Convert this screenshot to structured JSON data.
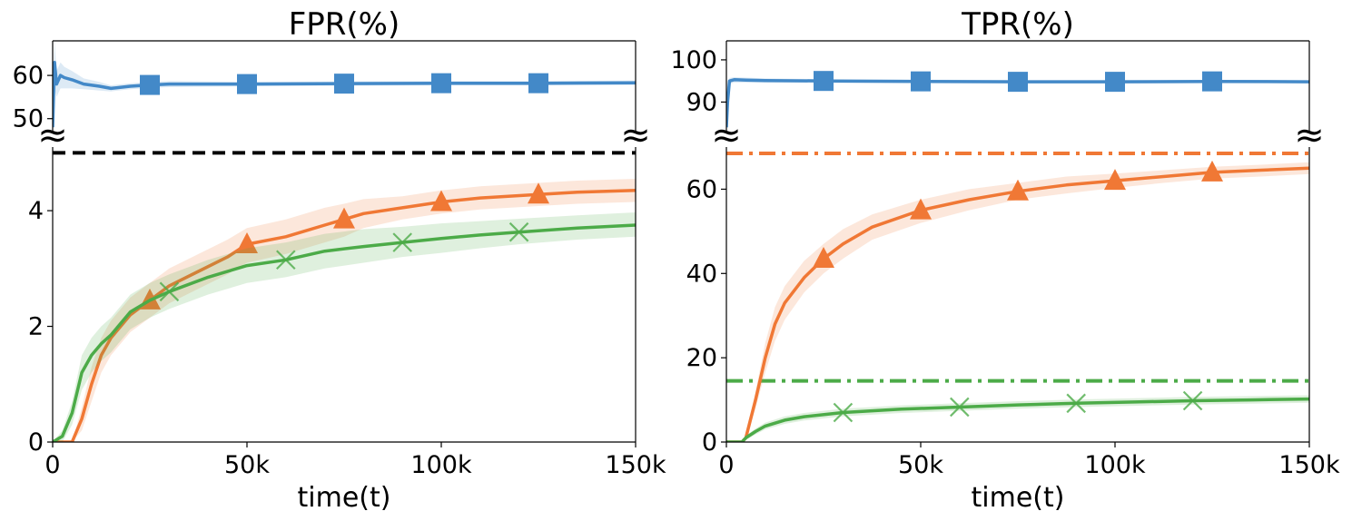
{
  "chart_data": [
    {
      "type": "line",
      "title": "FPR(%)",
      "xlabel": "time(t)",
      "ylabel": "",
      "x_ticks": [
        "0",
        "50k",
        "100k",
        "150k"
      ],
      "xlim": [
        0,
        150000
      ],
      "upper": {
        "ylim": [
          47,
          68
        ],
        "y_ticks": [
          50,
          60
        ],
        "series": [
          {
            "color": "#4389c8",
            "marker": "square",
            "markers_x": [
              25000,
              50000,
              75000,
              100000,
              125000
            ],
            "x": [
              0,
              500,
              1000,
              2000,
              3000,
              5000,
              8000,
              12000,
              15000,
              20000,
              25000,
              30000,
              40000,
              50000,
              75000,
              100000,
              125000,
              150000
            ],
            "y": [
              48,
              63,
              58,
              60,
              59.5,
              59,
              58,
              57.5,
              57,
              57.5,
              57.8,
              58,
              58,
              58,
              58.1,
              58.2,
              58.2,
              58.3
            ],
            "band_low": [
              45,
              57,
              55,
              57,
              57,
              57,
              56.8,
              56.5,
              56.3,
              56.8,
              57.1,
              57.3,
              57.4,
              57.5,
              57.6,
              57.7,
              57.7,
              57.8
            ],
            "band_high": [
              51,
              68,
              61,
              63,
              62,
              61,
              59.3,
              58.5,
              57.7,
              58.2,
              58.5,
              58.7,
              58.6,
              58.5,
              58.6,
              58.7,
              58.7,
              58.8
            ]
          }
        ]
      },
      "lower": {
        "ylim": [
          0,
          5.1
        ],
        "y_ticks": [
          0,
          2,
          4
        ],
        "reference_lines": [
          {
            "y": 5.0,
            "color": "#000000",
            "style": "dashed"
          }
        ],
        "series": [
          {
            "color": "#f07835",
            "marker": "triangle",
            "markers_x": [
              25000,
              50000,
              75000,
              100000,
              125000
            ],
            "x": [
              0,
              5000,
              7500,
              10000,
              12500,
              15000,
              20000,
              25000,
              30000,
              37500,
              45000,
              50000,
              60000,
              70000,
              75000,
              80000,
              90000,
              100000,
              110000,
              125000,
              135000,
              150000
            ],
            "y": [
              0,
              0,
              0.4,
              1.0,
              1.5,
              1.8,
              2.2,
              2.45,
              2.7,
              2.95,
              3.2,
              3.42,
              3.55,
              3.75,
              3.85,
              3.95,
              4.05,
              4.15,
              4.22,
              4.28,
              4.32,
              4.35
            ],
            "band_low": [
              0,
              0,
              0.2,
              0.7,
              1.2,
              1.5,
              1.9,
              2.15,
              2.4,
              2.65,
              2.9,
              3.1,
              3.25,
              3.45,
              3.55,
              3.7,
              3.85,
              3.95,
              4.02,
              4.08,
              4.12,
              4.15
            ],
            "band_high": [
              0,
              0,
              0.6,
              1.3,
              1.8,
              2.1,
              2.5,
              2.75,
              3.0,
              3.25,
              3.5,
              3.7,
              3.85,
              4.05,
              4.12,
              4.2,
              4.25,
              4.35,
              4.42,
              4.48,
              4.52,
              4.55
            ]
          },
          {
            "color": "#4cab48",
            "marker": "x",
            "markers_x": [
              30000,
              60000,
              90000,
              120000
            ],
            "x": [
              0,
              2500,
              5000,
              7500,
              10000,
              12500,
              15000,
              20000,
              25000,
              30000,
              40000,
              50000,
              60000,
              70000,
              80000,
              90000,
              100000,
              110000,
              120000,
              135000,
              150000
            ],
            "y": [
              0,
              0.1,
              0.5,
              1.2,
              1.5,
              1.7,
              1.85,
              2.25,
              2.45,
              2.6,
              2.85,
              3.05,
              3.15,
              3.3,
              3.38,
              3.45,
              3.52,
              3.58,
              3.63,
              3.7,
              3.75
            ],
            "band_low": [
              0,
              0,
              0.3,
              0.9,
              1.2,
              1.4,
              1.55,
              1.95,
              2.15,
              2.3,
              2.55,
              2.75,
              2.85,
              3.0,
              3.1,
              3.2,
              3.27,
              3.35,
              3.42,
              3.5,
              3.55
            ],
            "band_high": [
              0,
              0.2,
              0.7,
              1.5,
              1.8,
              2.0,
              2.15,
              2.55,
              2.75,
              2.9,
              3.15,
              3.35,
              3.45,
              3.6,
              3.68,
              3.72,
              3.78,
              3.82,
              3.86,
              3.92,
              3.97
            ]
          }
        ]
      }
    },
    {
      "type": "line",
      "title": "TPR(%)",
      "xlabel": "time(t)",
      "ylabel": "",
      "x_ticks": [
        "0",
        "50k",
        "100k",
        "150k"
      ],
      "xlim": [
        0,
        150000
      ],
      "upper": {
        "ylim": [
          83,
          104.5
        ],
        "y_ticks": [
          90,
          100
        ],
        "series": [
          {
            "color": "#4389c8",
            "marker": "square",
            "markers_x": [
              25000,
              50000,
              75000,
              100000,
              125000
            ],
            "x": [
              0,
              300,
              800,
              2000,
              5000,
              10000,
              25000,
              50000,
              75000,
              100000,
              125000,
              150000
            ],
            "y": [
              84,
              90,
              95,
              95.3,
              95.2,
              95.1,
              95,
              94.9,
              94.8,
              94.8,
              94.9,
              94.8
            ],
            "band_low": [
              82,
              88,
              94.3,
              94.6,
              94.6,
              94.6,
              94.6,
              94.5,
              94.5,
              94.5,
              94.6,
              94.5
            ],
            "band_high": [
              86,
              92,
              95.7,
              95.9,
              95.8,
              95.6,
              95.4,
              95.3,
              95.2,
              95.2,
              95.2,
              95.1
            ]
          }
        ]
      },
      "lower": {
        "ylim": [
          0,
          70
        ],
        "y_ticks": [
          0,
          20,
          40,
          60
        ],
        "reference_lines": [
          {
            "y": 68.5,
            "color": "#f07835",
            "style": "dashdot"
          },
          {
            "y": 14.5,
            "color": "#4cab48",
            "style": "dashdot"
          }
        ],
        "series": [
          {
            "color": "#f07835",
            "marker": "triangle",
            "markers_x": [
              25000,
              50000,
              75000,
              100000,
              125000
            ],
            "x": [
              0,
              4000,
              5000,
              7500,
              10000,
              12500,
              15000,
              20000,
              25000,
              30000,
              37500,
              50000,
              62500,
              75000,
              87500,
              100000,
              112500,
              125000,
              137500,
              150000
            ],
            "y": [
              0,
              0,
              1,
              10,
              20,
              28,
              33,
              39,
              43.5,
              47,
              51,
              55,
              57.5,
              59.5,
              61,
              62,
              63,
              64,
              64.5,
              65
            ],
            "band_low": [
              0,
              0,
              0.5,
              8,
              16.5,
              24,
              29,
              35.5,
              40,
              43.5,
              48,
              52,
              55,
              57.5,
              59,
              60.3,
              61.5,
              62.5,
              63,
              63.6
            ],
            "band_high": [
              0,
              0,
              1.5,
              12,
              23.5,
              32,
              37,
              43,
              47,
              50.5,
              54,
              57.5,
              60,
              61.5,
              63,
              63.7,
              64.5,
              65.3,
              65.8,
              66.4
            ]
          },
          {
            "color": "#4cab48",
            "marker": "x",
            "markers_x": [
              30000,
              60000,
              90000,
              120000
            ],
            "x": [
              0,
              4000,
              5000,
              7500,
              10000,
              15000,
              20000,
              30000,
              45000,
              60000,
              75000,
              90000,
              105000,
              120000,
              135000,
              150000
            ],
            "y": [
              0,
              0,
              1,
              2.5,
              3.8,
              5.2,
              6,
              7,
              7.8,
              8.3,
              8.8,
              9.2,
              9.5,
              9.8,
              10,
              10.2
            ],
            "band_low": [
              0,
              0,
              0.5,
              1.8,
              3,
              4.3,
              5.1,
              6.1,
              6.9,
              7.4,
              7.9,
              8.3,
              8.6,
              8.9,
              9.1,
              9.3
            ],
            "band_high": [
              0,
              0,
              1.5,
              3.2,
              4.6,
              6.1,
              6.9,
              7.9,
              8.7,
              9.2,
              9.7,
              10.1,
              10.4,
              10.7,
              10.9,
              11.1
            ]
          }
        ]
      }
    }
  ]
}
